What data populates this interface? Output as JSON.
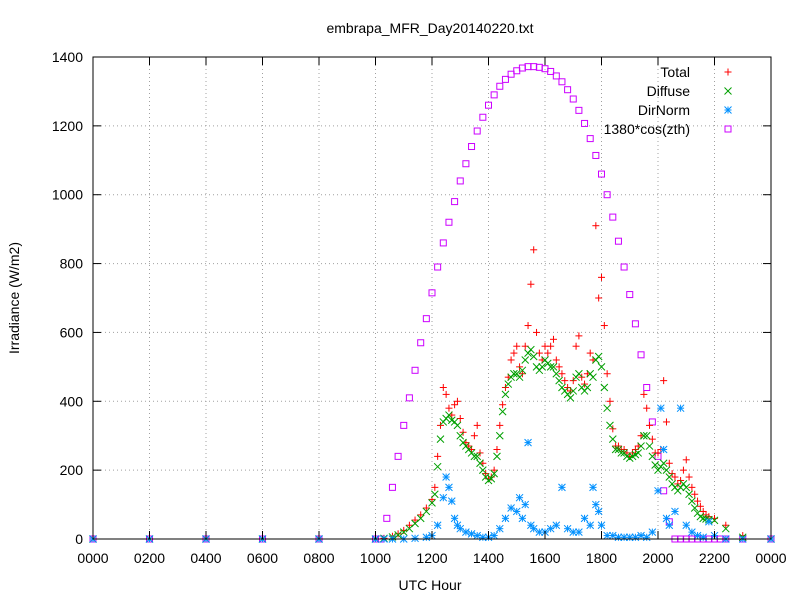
{
  "chart_data": {
    "type": "scatter",
    "title": "embrapa_MFR_Day20140220.txt",
    "xlabel": "UTC Hour",
    "ylabel": "Irradiance (W/m2)",
    "xlim": [
      0,
      2400
    ],
    "ylim": [
      0,
      1400
    ],
    "x_tick_labels": [
      "0000",
      "0200",
      "0400",
      "0600",
      "0800",
      "1000",
      "1200",
      "1400",
      "1600",
      "1800",
      "2000",
      "2200",
      "0000"
    ],
    "y_ticks": [
      0,
      200,
      400,
      600,
      800,
      1000,
      1200,
      1400
    ],
    "grid": true,
    "legend_position": "top-right",
    "series": [
      {
        "name": "Total",
        "marker": "plus",
        "color": "#ff0000",
        "x": [
          0,
          200,
          400,
          600,
          800,
          1000,
          1030,
          1060,
          1080,
          1100,
          1120,
          1140,
          1160,
          1180,
          1200,
          1210,
          1220,
          1230,
          1240,
          1250,
          1260,
          1270,
          1280,
          1290,
          1300,
          1310,
          1320,
          1330,
          1340,
          1350,
          1360,
          1370,
          1380,
          1390,
          1400,
          1410,
          1420,
          1430,
          1440,
          1450,
          1460,
          1470,
          1480,
          1490,
          1500,
          1510,
          1520,
          1530,
          1540,
          1550,
          1560,
          1570,
          1580,
          1590,
          1600,
          1610,
          1620,
          1630,
          1640,
          1650,
          1660,
          1670,
          1680,
          1690,
          1700,
          1710,
          1720,
          1730,
          1740,
          1750,
          1760,
          1770,
          1780,
          1790,
          1800,
          1810,
          1820,
          1830,
          1840,
          1850,
          1860,
          1870,
          1880,
          1890,
          1900,
          1910,
          1920,
          1930,
          1940,
          1950,
          1960,
          1970,
          1980,
          1990,
          2000,
          2010,
          2020,
          2030,
          2040,
          2050,
          2060,
          2070,
          2080,
          2090,
          2100,
          2110,
          2120,
          2130,
          2140,
          2150,
          2160,
          2170,
          2180,
          2200,
          2240,
          2300,
          2400
        ],
        "values": [
          0,
          0,
          0,
          0,
          0,
          0,
          2,
          8,
          15,
          25,
          40,
          55,
          70,
          90,
          115,
          150,
          240,
          330,
          440,
          420,
          380,
          360,
          390,
          400,
          350,
          310,
          280,
          270,
          260,
          300,
          330,
          250,
          220,
          190,
          175,
          180,
          200,
          260,
          330,
          390,
          440,
          470,
          520,
          540,
          560,
          500,
          480,
          560,
          620,
          740,
          840,
          600,
          540,
          520,
          560,
          540,
          560,
          580,
          520,
          500,
          480,
          460,
          440,
          430,
          460,
          560,
          590,
          470,
          450,
          480,
          540,
          520,
          910,
          700,
          760,
          620,
          480,
          400,
          320,
          270,
          270,
          260,
          260,
          250,
          240,
          250,
          260,
          270,
          300,
          420,
          380,
          330,
          290,
          250,
          250,
          260,
          460,
          340,
          220,
          190,
          180,
          160,
          170,
          200,
          230,
          180,
          150,
          130,
          110,
          95,
          80,
          70,
          65,
          60,
          40,
          10,
          0
        ]
      },
      {
        "name": "Diffuse",
        "marker": "cross",
        "color": "#00a000",
        "x": [
          0,
          200,
          400,
          600,
          800,
          1000,
          1030,
          1060,
          1080,
          1100,
          1120,
          1140,
          1160,
          1180,
          1200,
          1210,
          1220,
          1230,
          1240,
          1250,
          1260,
          1270,
          1280,
          1290,
          1300,
          1310,
          1320,
          1330,
          1340,
          1350,
          1360,
          1370,
          1380,
          1390,
          1400,
          1410,
          1420,
          1430,
          1440,
          1450,
          1460,
          1470,
          1480,
          1490,
          1500,
          1510,
          1520,
          1530,
          1540,
          1550,
          1560,
          1570,
          1580,
          1590,
          1600,
          1610,
          1620,
          1630,
          1640,
          1650,
          1660,
          1670,
          1680,
          1690,
          1700,
          1710,
          1720,
          1730,
          1740,
          1750,
          1760,
          1770,
          1780,
          1790,
          1800,
          1810,
          1820,
          1830,
          1840,
          1850,
          1860,
          1870,
          1880,
          1890,
          1900,
          1910,
          1920,
          1930,
          1940,
          1950,
          1960,
          1970,
          1980,
          1990,
          2000,
          2010,
          2020,
          2030,
          2040,
          2050,
          2060,
          2070,
          2080,
          2090,
          2100,
          2110,
          2120,
          2130,
          2140,
          2150,
          2160,
          2170,
          2180,
          2200,
          2240,
          2300,
          2400
        ],
        "values": [
          0,
          0,
          0,
          0,
          0,
          0,
          2,
          6,
          12,
          20,
          30,
          45,
          60,
          80,
          105,
          130,
          210,
          290,
          340,
          350,
          360,
          345,
          340,
          330,
          300,
          280,
          270,
          260,
          250,
          240,
          240,
          220,
          200,
          180,
          170,
          175,
          190,
          240,
          300,
          370,
          420,
          450,
          470,
          480,
          480,
          470,
          490,
          520,
          540,
          550,
          530,
          500,
          490,
          500,
          520,
          510,
          500,
          500,
          480,
          460,
          440,
          430,
          420,
          410,
          430,
          470,
          480,
          440,
          430,
          440,
          480,
          470,
          520,
          530,
          500,
          440,
          380,
          330,
          290,
          260,
          260,
          250,
          250,
          240,
          235,
          240,
          245,
          250,
          270,
          300,
          300,
          270,
          240,
          215,
          200,
          210,
          220,
          200,
          180,
          160,
          150,
          140,
          150,
          160,
          150,
          130,
          110,
          90,
          75,
          65,
          60,
          58,
          56,
          54,
          30,
          5,
          0
        ]
      },
      {
        "name": "DirNorm",
        "marker": "star",
        "color": "#0090ff",
        "x": [
          0,
          200,
          400,
          600,
          800,
          1000,
          1030,
          1060,
          1100,
          1140,
          1180,
          1200,
          1220,
          1240,
          1250,
          1260,
          1270,
          1280,
          1290,
          1300,
          1320,
          1340,
          1360,
          1380,
          1400,
          1420,
          1440,
          1460,
          1480,
          1500,
          1510,
          1520,
          1530,
          1540,
          1550,
          1560,
          1580,
          1600,
          1620,
          1640,
          1660,
          1680,
          1700,
          1720,
          1740,
          1760,
          1770,
          1780,
          1790,
          1800,
          1820,
          1840,
          1860,
          1880,
          1900,
          1920,
          1940,
          1960,
          1980,
          2000,
          2010,
          2020,
          2030,
          2040,
          2060,
          2080,
          2100,
          2120,
          2140,
          2160,
          2180,
          2200,
          2240,
          2300,
          2400
        ],
        "values": [
          0,
          0,
          0,
          0,
          0,
          0,
          0,
          0,
          0,
          2,
          5,
          10,
          40,
          120,
          180,
          150,
          110,
          60,
          40,
          30,
          20,
          15,
          10,
          5,
          5,
          10,
          30,
          60,
          90,
          80,
          120,
          60,
          100,
          280,
          40,
          30,
          20,
          20,
          30,
          40,
          150,
          30,
          20,
          20,
          60,
          40,
          150,
          100,
          80,
          40,
          10,
          10,
          5,
          5,
          5,
          5,
          10,
          5,
          20,
          140,
          380,
          260,
          60,
          40,
          80,
          380,
          40,
          20,
          10,
          5,
          50,
          10,
          0,
          0,
          0
        ]
      },
      {
        "name": "1380*cos(zth)",
        "marker": "square",
        "color": "#cc00ff",
        "x": [
          0,
          200,
          400,
          600,
          800,
          1000,
          1020,
          1040,
          1060,
          1080,
          1100,
          1120,
          1140,
          1160,
          1180,
          1200,
          1220,
          1240,
          1260,
          1280,
          1300,
          1320,
          1340,
          1360,
          1380,
          1400,
          1420,
          1440,
          1460,
          1480,
          1500,
          1520,
          1540,
          1560,
          1580,
          1600,
          1620,
          1640,
          1660,
          1680,
          1700,
          1720,
          1740,
          1760,
          1780,
          1800,
          1820,
          1840,
          1860,
          1880,
          1900,
          1920,
          1940,
          1960,
          1980,
          2000,
          2020,
          2040,
          2060,
          2080,
          2100,
          2120,
          2140,
          2160,
          2180,
          2200,
          2220,
          2240,
          2300,
          2400
        ],
        "values": [
          0,
          0,
          0,
          0,
          0,
          0,
          0,
          60,
          150,
          240,
          330,
          410,
          490,
          570,
          640,
          715,
          790,
          860,
          920,
          980,
          1040,
          1090,
          1140,
          1185,
          1225,
          1260,
          1290,
          1315,
          1335,
          1350,
          1360,
          1368,
          1372,
          1372,
          1370,
          1366,
          1358,
          1345,
          1328,
          1305,
          1278,
          1245,
          1207,
          1163,
          1114,
          1060,
          1000,
          935,
          865,
          790,
          710,
          625,
          535,
          440,
          340,
          240,
          140,
          50,
          0,
          0,
          0,
          0,
          0,
          0,
          0,
          0,
          0,
          0,
          0,
          0
        ]
      }
    ]
  }
}
